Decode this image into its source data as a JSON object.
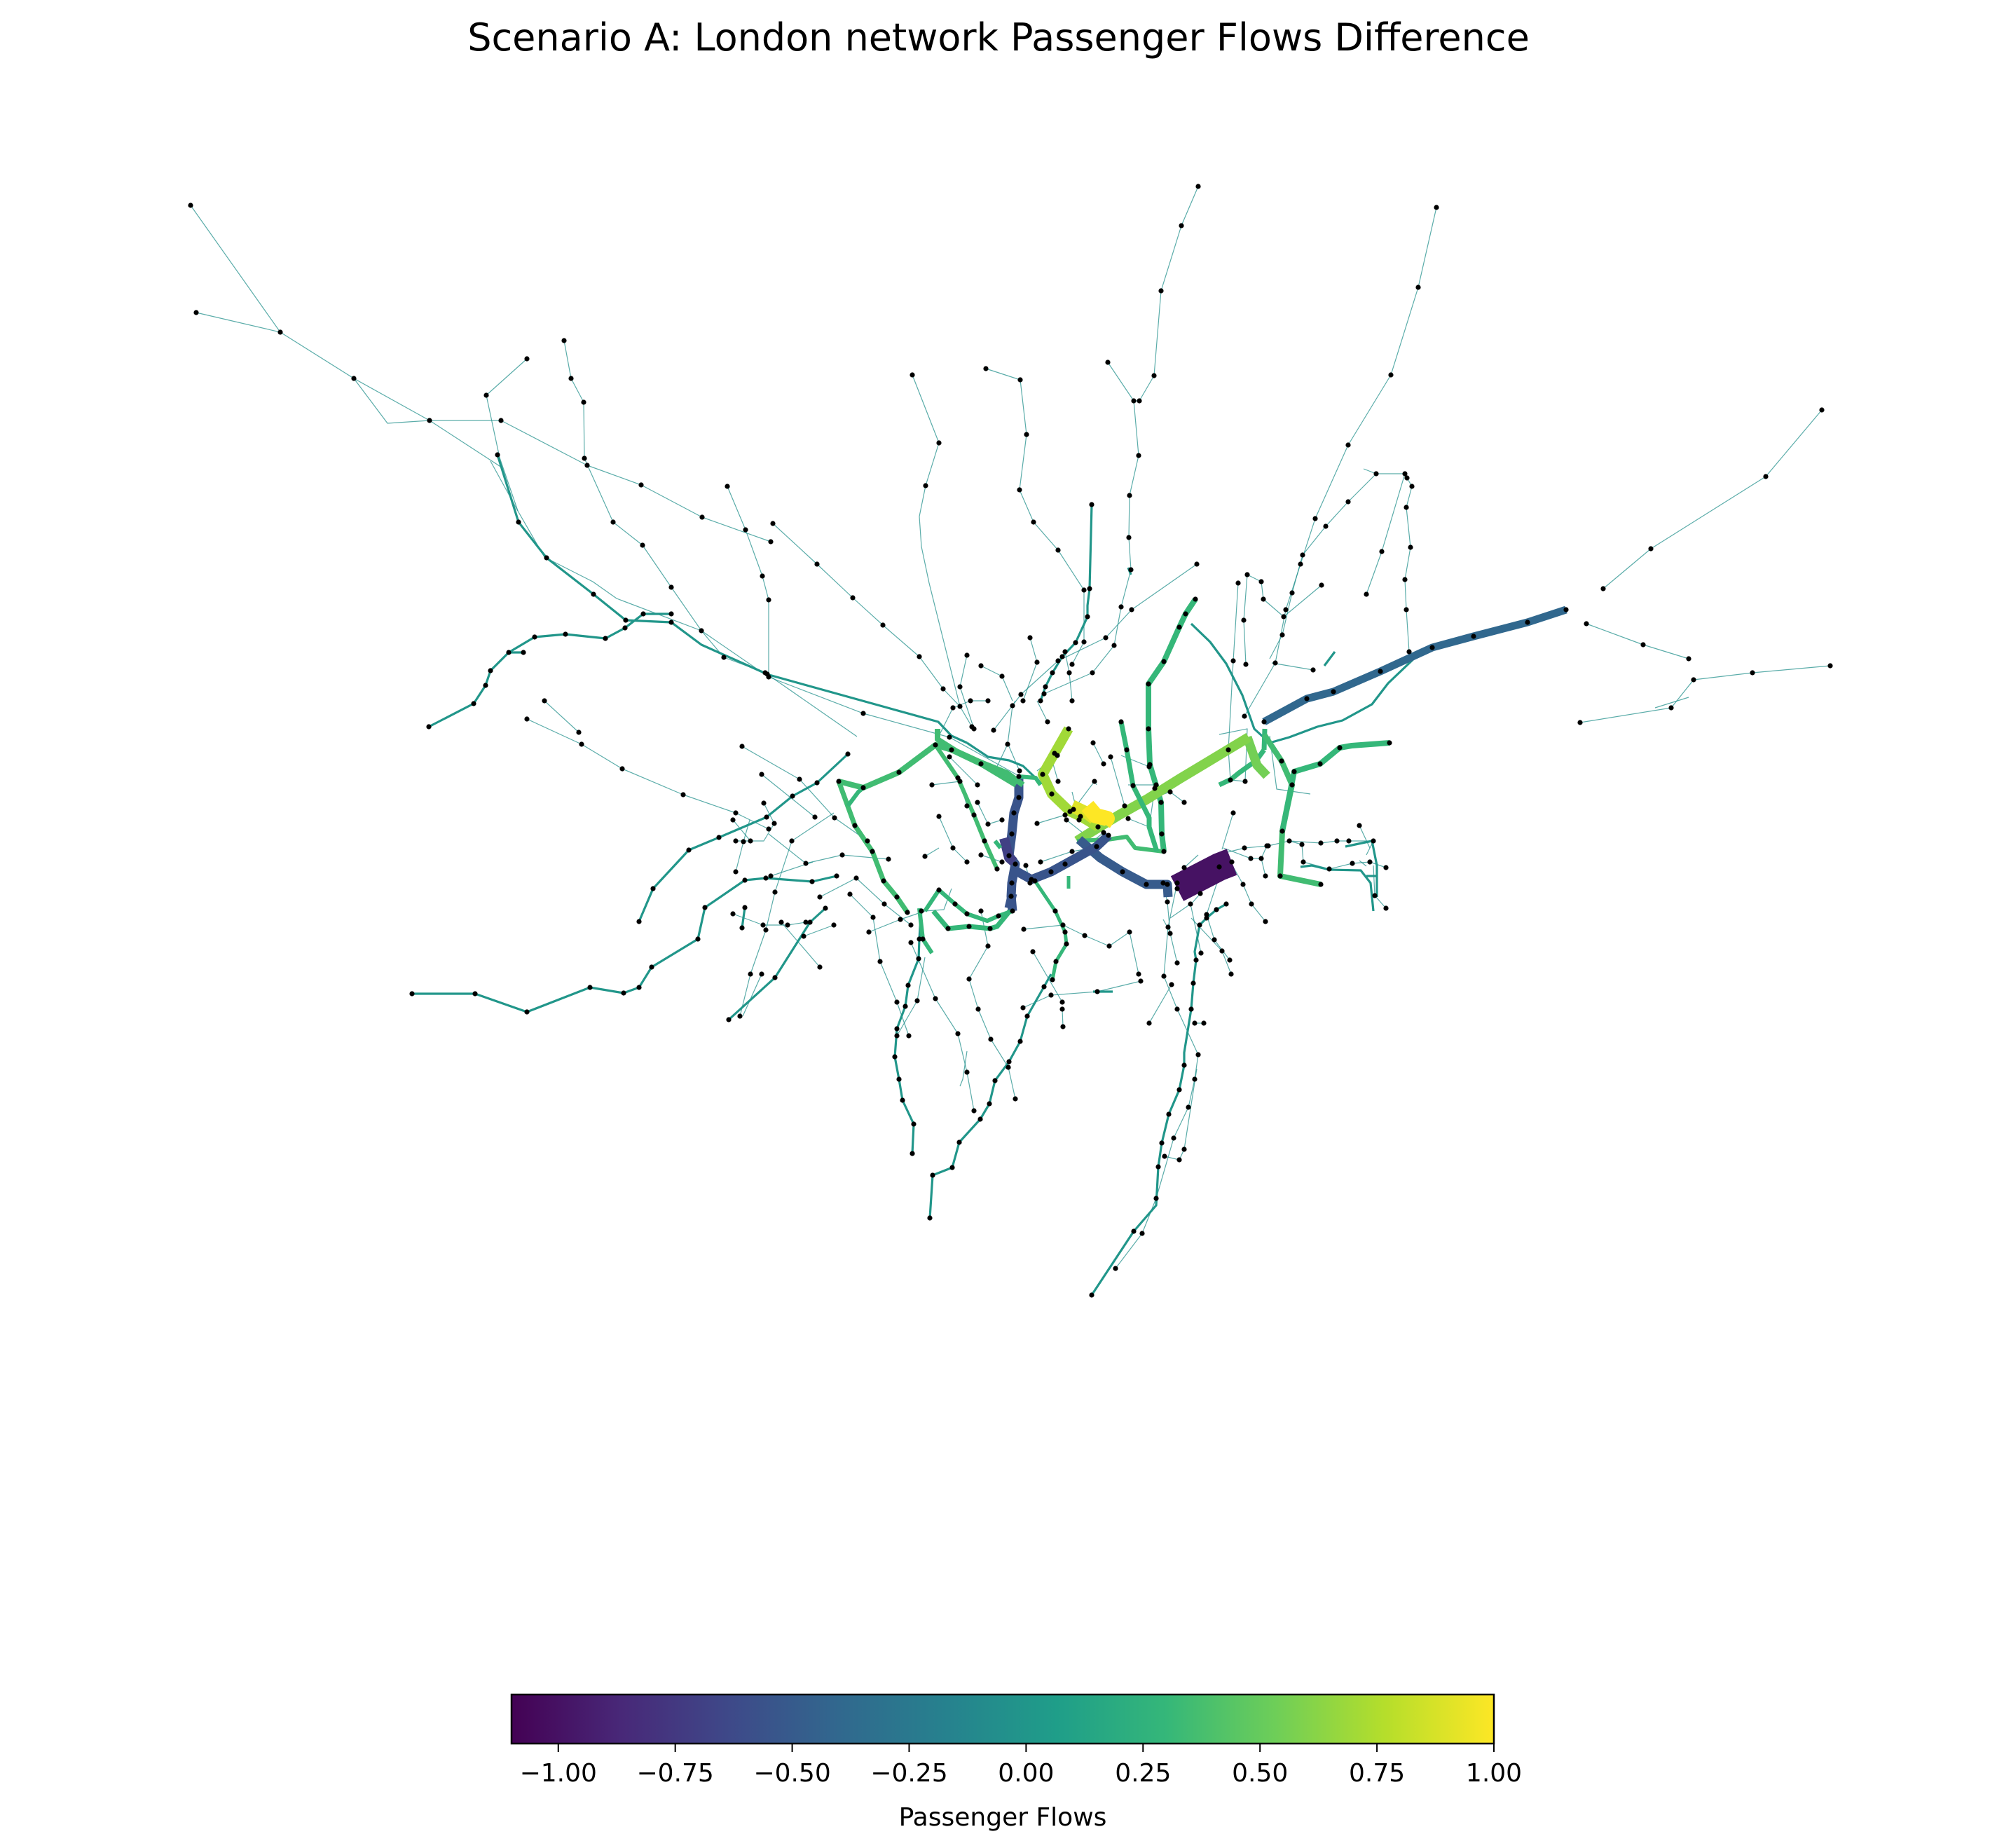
{
  "chart_data": {
    "type": "network",
    "title": "Scenario A: London network Passenger Flows Difference",
    "colorbar": {
      "label": "Passenger Flows",
      "colormap": "viridis",
      "range": [
        -1.1,
        1.0
      ],
      "ticks": [
        "−1.00",
        "−0.75",
        "−0.50",
        "−0.25",
        "0.00",
        "0.25",
        "0.50",
        "0.75",
        "1.00"
      ],
      "tick_values": [
        -1.0,
        -0.75,
        -0.5,
        -0.25,
        0.0,
        0.25,
        0.5,
        0.75,
        1.0
      ],
      "orientation": "horizontal",
      "placement": "bottom"
    },
    "edge_width_encodes": "absolute flow difference",
    "node_color": "#000000",
    "edges": [
      {
        "value": -1.0,
        "emphasis": "major"
      },
      {
        "value": 1.0,
        "emphasis": "major"
      },
      {
        "value": 0.7,
        "emphasis": "major"
      },
      {
        "value": 0.6,
        "emphasis": "major"
      },
      {
        "value": -0.55,
        "emphasis": "major"
      },
      {
        "value": -0.7,
        "emphasis": "major"
      },
      {
        "value": -0.4,
        "emphasis": "major"
      },
      {
        "value": 0.35,
        "emphasis": "minor"
      },
      {
        "value": 0.3,
        "emphasis": "minor"
      },
      {
        "value": 0.1,
        "emphasis": "minor"
      },
      {
        "value": 0.0,
        "emphasis": "minor"
      }
    ]
  },
  "colors": {
    "viridis": [
      "#440154",
      "#482878",
      "#3e4989",
      "#31688e",
      "#26828e",
      "#1f9e89",
      "#35b779",
      "#6ece58",
      "#b5de2b",
      "#fde725"
    ]
  }
}
